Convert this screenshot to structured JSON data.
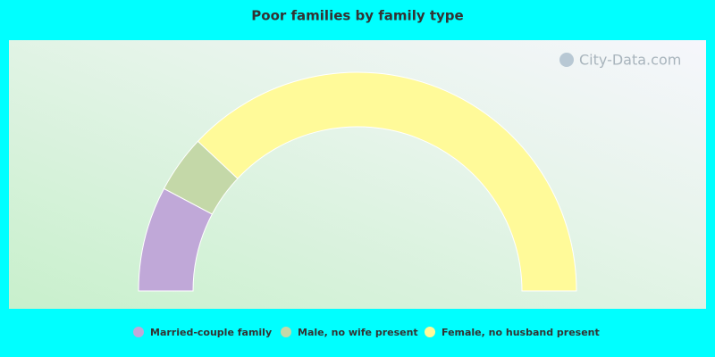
{
  "chart_data": {
    "type": "pie",
    "title": "Poor families by family type",
    "watermark": "City-Data.com",
    "categories": [
      "Married-couple family",
      "Male, no wife present",
      "Female, no husband present"
    ],
    "values": [
      15.5,
      8.5,
      76
    ],
    "colors": [
      "#c0a8d8",
      "#c4d8a8",
      "#fffa99"
    ]
  }
}
